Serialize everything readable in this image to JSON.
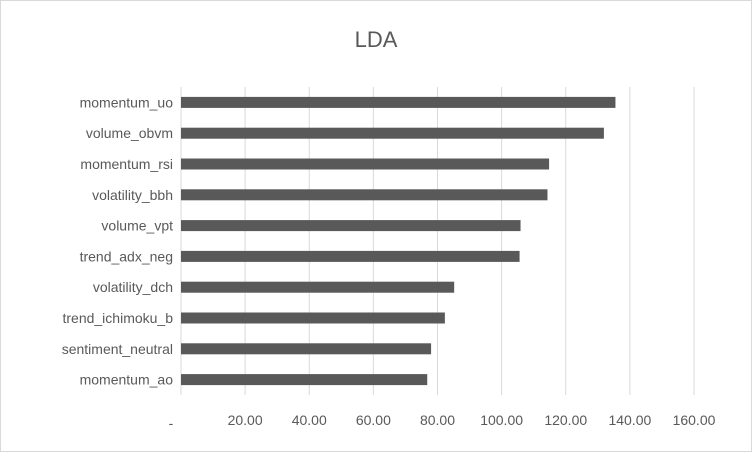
{
  "chart_data": {
    "type": "bar",
    "orientation": "horizontal",
    "title": "LDA",
    "xlabel": "",
    "ylabel": "",
    "categories": [
      "momentum_uo",
      "volume_obvm",
      "momentum_rsi",
      "volatility_bbh",
      "volume_vpt",
      "trend_adx_neg",
      "volatility_dch",
      "trend_ichimoku_b",
      "sentiment_neutral",
      "momentum_ao"
    ],
    "values": [
      135.5,
      131.9,
      114.8,
      114.3,
      105.9,
      105.6,
      85.2,
      82.3,
      78.0,
      76.8
    ],
    "xlim": [
      0,
      160
    ],
    "xticks": [
      0,
      20,
      40,
      60,
      80,
      100,
      120,
      140,
      160
    ],
    "xtick_labels": [
      "-",
      "20.00",
      "40.00",
      "60.00",
      "80.00",
      "100.00",
      "120.00",
      "140.00",
      "160.00"
    ],
    "grid": true,
    "legend": "none",
    "bar_color": "#595959",
    "grid_color": "#d9d9d9"
  }
}
